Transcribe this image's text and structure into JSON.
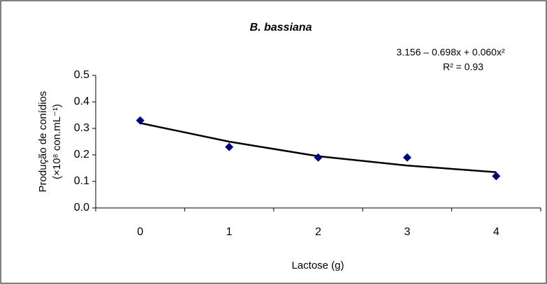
{
  "chart_data": {
    "type": "scatter",
    "title": "B. bassiana",
    "equation": "3.156 – 0.698x + 0.060x²",
    "r_squared": "R² = 0.93",
    "x_label": "Lactose (g)",
    "y_label": [
      "Produção de conídios",
      "(×10⁸ con.mL⁻¹)"
    ],
    "x": [
      0,
      1,
      2,
      3,
      4
    ],
    "values": [
      0.33,
      0.23,
      0.19,
      0.19,
      0.12
    ],
    "color": "#000080",
    "trendline": {
      "x": [
        0,
        1,
        2,
        3,
        4
      ],
      "values": [
        0.32,
        0.25,
        0.195,
        0.16,
        0.135
      ],
      "color": "#000000"
    },
    "xlim": [
      -0.5,
      4.5
    ],
    "xticks": [
      0,
      1,
      2,
      3,
      4
    ],
    "ylim": [
      0,
      0.5
    ],
    "yticks": [
      {
        "value": 0,
        "label": "0.0"
      },
      0.1,
      0.2,
      0.3,
      0.4,
      0.5
    ]
  }
}
